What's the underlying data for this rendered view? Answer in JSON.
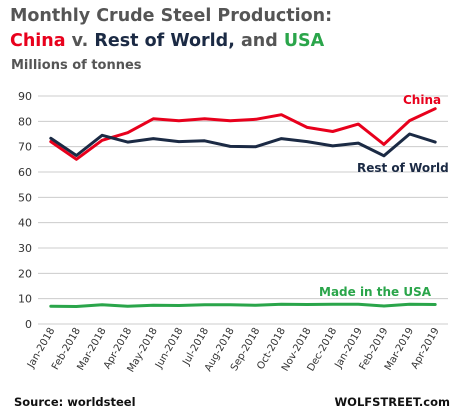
{
  "header": {
    "title_part1": "Monthly Crude Steel Production:",
    "title_china": "China",
    "title_v": " v. ",
    "title_row": "Rest of World,",
    "title_and": " and ",
    "title_usa": "USA",
    "subtitle": "Millions of tonnes"
  },
  "footer": {
    "source": "Source: worldsteel",
    "brand": "WOLFSTREET.com"
  },
  "colors": {
    "china": "#e8001c",
    "rest_of_world": "#1b2a44",
    "usa": "#2aa54a",
    "grid": "#cccccc",
    "axis_text": "#333333"
  },
  "chart_data": {
    "type": "line",
    "title": "Monthly Crude Steel Production: China v. Rest of World, and USA",
    "ylabel": "Millions of tonnes",
    "xlabel": "",
    "ylim": [
      0,
      90
    ],
    "yticks": [
      "0",
      "10",
      "20",
      "30",
      "40",
      "50",
      "60",
      "70",
      "80",
      "90"
    ],
    "grid": true,
    "x": [
      "Jan-2018",
      "Feb-2018",
      "Mar-2018",
      "Apr-2018",
      "May-2018",
      "Jun-2018",
      "Jul-2018",
      "Aug-2018",
      "Sep-2018",
      "Oct-2018",
      "Nov-2018",
      "Dec-2018",
      "Jan-2019",
      "Feb-2019",
      "Mar-2019",
      "Apr-2019"
    ],
    "series": [
      {
        "name": "China",
        "color": "#e8001c",
        "values": [
          72.0,
          65.0,
          72.5,
          75.5,
          81.0,
          80.2,
          81.0,
          80.2,
          80.8,
          82.6,
          77.6,
          76.0,
          78.9,
          70.9,
          80.3,
          85.0
        ]
      },
      {
        "name": "Rest of World",
        "color": "#1b2a44",
        "values": [
          73.3,
          66.5,
          74.5,
          71.8,
          73.2,
          72.0,
          72.3,
          70.1,
          70.0,
          73.2,
          72.0,
          70.3,
          71.4,
          66.4,
          75.0,
          71.8
        ]
      },
      {
        "name": "Made in the USA",
        "color": "#2aa54a",
        "values": [
          7.0,
          6.9,
          7.6,
          7.0,
          7.4,
          7.3,
          7.6,
          7.6,
          7.4,
          7.8,
          7.7,
          7.8,
          7.8,
          7.1,
          7.8,
          7.7
        ]
      }
    ],
    "series_labels": [
      {
        "text": "China",
        "series": "China"
      },
      {
        "text": "Rest of World",
        "series": "Rest of World"
      },
      {
        "text": "Made in the USA",
        "series": "Made in the USA"
      }
    ]
  }
}
